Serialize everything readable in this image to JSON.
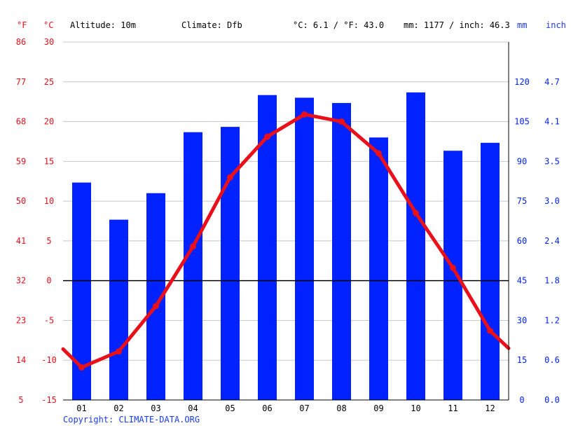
{
  "header": {
    "unit_f": "°F",
    "unit_c": "°C",
    "altitude": "Altitude: 10m",
    "climate": "Climate: Dfb",
    "temp_avg": "°C: 6.1 / °F: 43.0",
    "precip_total": "mm: 1177 / inch: 46.3",
    "unit_mm": "mm",
    "unit_inch": "inch"
  },
  "copyright": "Copyright: CLIMATE-DATA.ORG",
  "colors": {
    "temperature": "#e8101a",
    "precipitation": "#0022ff",
    "grid": "#c8c8c8",
    "zero_line": "#000000"
  },
  "chart_data": {
    "type": "bar+line",
    "categories": [
      "01",
      "02",
      "03",
      "04",
      "05",
      "06",
      "07",
      "08",
      "09",
      "10",
      "11",
      "12"
    ],
    "series": [
      {
        "name": "Precipitation (mm)",
        "type": "bar",
        "axis": "right",
        "unit": "mm",
        "values": [
          82,
          68,
          78,
          101,
          103,
          115,
          114,
          112,
          99,
          116,
          94,
          97
        ]
      },
      {
        "name": "Temperature (°C)",
        "type": "line",
        "axis": "left",
        "unit": "°C",
        "values": [
          -10.9,
          -8.9,
          -3.2,
          4.3,
          13.0,
          18.1,
          20.9,
          20.0,
          16.0,
          8.5,
          1.6,
          -6.3
        ],
        "start_value": -8.6,
        "end_value": -8.5
      }
    ],
    "y_left_c": {
      "min": -15,
      "max": 30,
      "ticks": [
        30,
        25,
        20,
        15,
        10,
        5,
        0,
        -5,
        -10,
        -15
      ]
    },
    "y_left_f": {
      "ticks": [
        86,
        77,
        68,
        59,
        50,
        41,
        32,
        23,
        14,
        5
      ]
    },
    "y_right_mm": {
      "min": 0,
      "max": 135,
      "ticks": [
        120,
        105,
        90,
        75,
        60,
        45,
        30,
        15,
        0
      ]
    },
    "y_right_inch": {
      "ticks": [
        "4.7",
        "4.1",
        "3.5",
        "3.0",
        "2.4",
        "1.8",
        "1.2",
        "0.6",
        "0.0"
      ]
    },
    "grid": true
  }
}
